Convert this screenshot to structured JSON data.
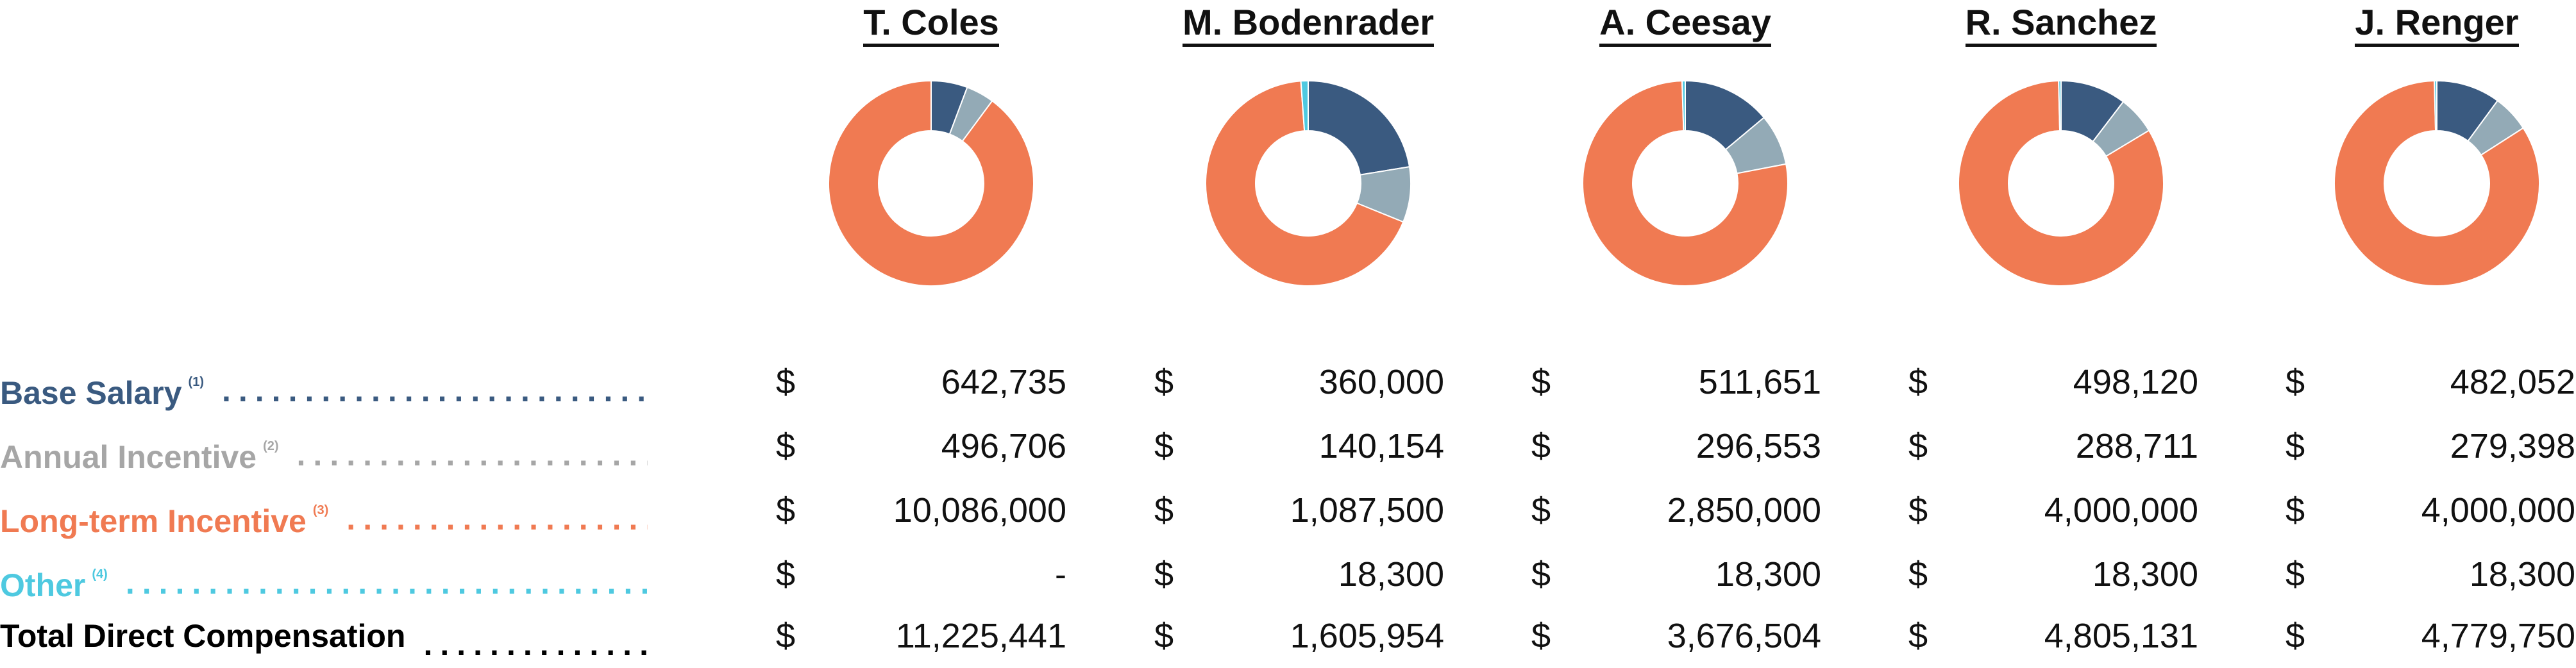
{
  "chart_data": {
    "type": "donut",
    "title": "",
    "executives": [
      "T. Coles",
      "M. Bodenrader",
      "A. Ceesay",
      "R. Sanchez",
      "J. Renger"
    ],
    "components": [
      {
        "name": "Base Salary",
        "footnote": "(1)",
        "color": "#3a5a80",
        "label_color": "#3a5a80",
        "dot_color": "#3a5a80",
        "values": [
          "642,735",
          "360,000",
          "511,651",
          "498,120",
          "482,052"
        ],
        "numeric": [
          642735,
          360000,
          511651,
          498120,
          482052
        ]
      },
      {
        "name": "Annual Incentive",
        "footnote": "(2)",
        "color": "#93aab6",
        "label_color": "#a6a6a6",
        "dot_color": "#a6a6a6",
        "values": [
          "496,706",
          "140,154",
          "296,553",
          "288,711",
          "279,398"
        ],
        "numeric": [
          496706,
          140154,
          296553,
          288711,
          279398
        ]
      },
      {
        "name": "Long-term Incentive",
        "footnote": "(3)",
        "color": "#f07a52",
        "label_color": "#f07a52",
        "dot_color": "#f07a52",
        "values": [
          "10,086,000",
          "1,087,500",
          "2,850,000",
          "4,000,000",
          "4,000,000"
        ],
        "numeric": [
          10086000,
          1087500,
          2850000,
          4000000,
          4000000
        ]
      },
      {
        "name": "Other",
        "footnote": "(4)",
        "color": "#4ec9e0",
        "label_color": "#4ec9e0",
        "dot_color": "#4ec9e0",
        "values": [
          "-",
          "18,300",
          "18,300",
          "18,300",
          "18,300"
        ],
        "numeric": [
          0,
          18300,
          18300,
          18300,
          18300
        ]
      }
    ],
    "total": {
      "name": "Total Direct Compensation",
      "color": "#000000",
      "values": [
        "11,225,441",
        "1,605,954",
        "3,676,504",
        "4,805,131",
        "4,779,750"
      ],
      "numeric": [
        11225441,
        1605954,
        3676504,
        4805131,
        4779750
      ]
    },
    "currency_symbol": "$"
  }
}
